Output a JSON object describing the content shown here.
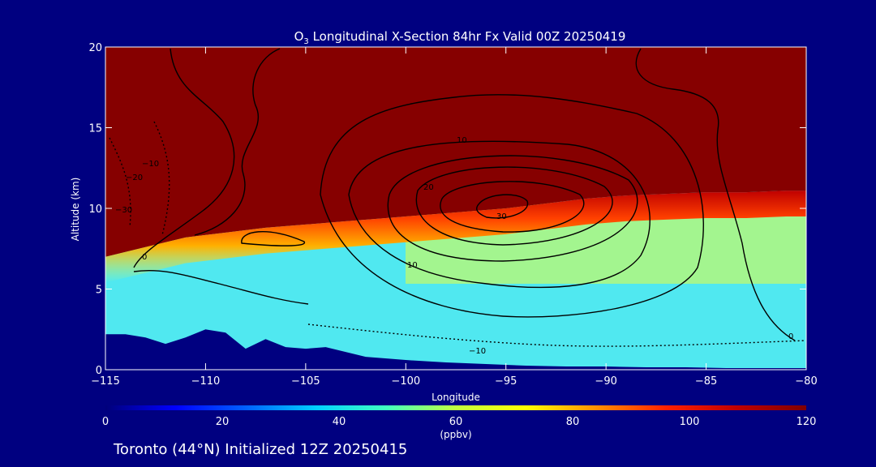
{
  "chart_data": {
    "type": "heatmap",
    "title": {
      "species_main": "O",
      "species_sub": "3",
      "rest": " Longitudinal X-Section 84hr  Fx Valid 00Z 20250419"
    },
    "xlabel": "Longitude",
    "ylabel": "Altitude (km)",
    "footer": "Toronto (44°N) Initialized 12Z 20250415",
    "x_ticks": [
      "−115",
      "−110",
      "−105",
      "−100",
      "−95",
      "−90",
      "−85",
      "−80"
    ],
    "y_ticks": [
      "0",
      "5",
      "10",
      "15",
      "20"
    ],
    "xlim": [
      -115,
      -80
    ],
    "ylim": [
      0,
      20
    ],
    "colorbar": {
      "label": "(ppbv)",
      "ticks": [
        "0",
        "20",
        "40",
        "60",
        "80",
        "100",
        "120"
      ],
      "range": [
        0,
        120
      ],
      "colors": [
        "#00007a",
        "#0000ff",
        "#0060ff",
        "#00d0ff",
        "#40ffc0",
        "#c0ff40",
        "#ffff00",
        "#ff9000",
        "#ff2000",
        "#c00000",
        "#800000"
      ]
    },
    "contour_labels": [
      "0",
      "10",
      "−10",
      "20",
      "−20",
      "30",
      "−30",
      "−10",
      "10",
      "0"
    ],
    "tropopause_km": [
      [
        -115,
        7.0
      ],
      [
        -113,
        7.6
      ],
      [
        -111,
        8.2
      ],
      [
        -109,
        8.5
      ],
      [
        -107,
        8.8
      ],
      [
        -105,
        9.0
      ],
      [
        -103,
        9.2
      ],
      [
        -101,
        9.4
      ],
      [
        -99,
        9.6
      ],
      [
        -97,
        9.8
      ],
      [
        -95,
        10.0
      ],
      [
        -93,
        10.3
      ],
      [
        -91,
        10.6
      ],
      [
        -89,
        10.8
      ],
      [
        -87,
        10.9
      ],
      [
        -85,
        11.0
      ],
      [
        -83,
        11.0
      ],
      [
        -81,
        11.1
      ],
      [
        -80,
        11.1
      ]
    ],
    "terrain_km": [
      [
        -115,
        2.2
      ],
      [
        -114,
        2.2
      ],
      [
        -113,
        2.0
      ],
      [
        -112,
        1.6
      ],
      [
        -111,
        2.0
      ],
      [
        -110,
        2.5
      ],
      [
        -109,
        2.3
      ],
      [
        -108,
        1.3
      ],
      [
        -107,
        1.9
      ],
      [
        -106,
        1.4
      ],
      [
        -105,
        1.3
      ],
      [
        -104,
        1.4
      ],
      [
        -103,
        1.1
      ],
      [
        -102,
        0.8
      ],
      [
        -100,
        0.6
      ],
      [
        -98,
        0.45
      ],
      [
        -96,
        0.35
      ],
      [
        -94,
        0.25
      ],
      [
        -92,
        0.2
      ],
      [
        -90,
        0.2
      ],
      [
        -88,
        0.15
      ],
      [
        -86,
        0.15
      ],
      [
        -84,
        0.1
      ],
      [
        -82,
        0.1
      ],
      [
        -80,
        0.1
      ]
    ]
  }
}
